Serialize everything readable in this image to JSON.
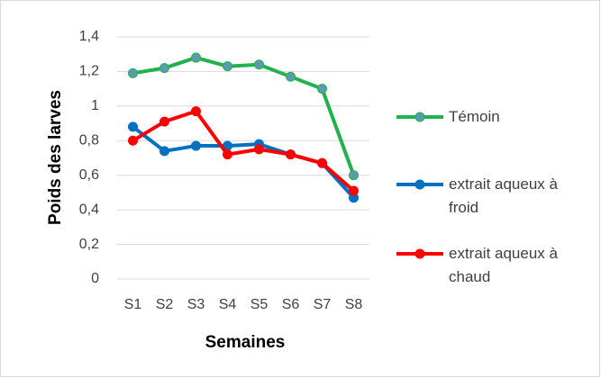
{
  "chart_data": {
    "type": "line",
    "xlabel": "Semaines",
    "ylabel": "Poids des larves",
    "categories": [
      "S1",
      "S2",
      "S3",
      "S4",
      "S5",
      "S6",
      "S7",
      "S8"
    ],
    "series": [
      {
        "name": "Témoin",
        "color": "#22b14c",
        "marker_color": "#5b9bad",
        "values": [
          1.19,
          1.22,
          1.28,
          1.23,
          1.24,
          1.17,
          1.1,
          0.6
        ]
      },
      {
        "name": "extrait aqueux à froid",
        "color": "#0070c0",
        "marker_color": "#0070c0",
        "values": [
          0.88,
          0.74,
          0.77,
          0.77,
          0.78,
          0.72,
          0.67,
          0.47
        ]
      },
      {
        "name": "extrait aqueux à chaud",
        "color": "#ff0000",
        "marker_color": "#ff0000",
        "values": [
          0.8,
          0.91,
          0.97,
          0.72,
          0.75,
          0.72,
          0.67,
          0.51
        ]
      }
    ],
    "ylim": [
      0,
      1.4
    ],
    "yticks": [
      0,
      {
        "value": 0.2,
        "label": "0,2"
      },
      {
        "value": 0.4,
        "label": "0,4"
      },
      {
        "value": 0.6,
        "label": "0,6"
      },
      {
        "value": 0.8,
        "label": "0,8"
      },
      1,
      {
        "value": 1.2,
        "label": "1,2"
      },
      {
        "value": 1.4,
        "label": "1,4"
      }
    ],
    "grid": true,
    "legend": "right"
  }
}
